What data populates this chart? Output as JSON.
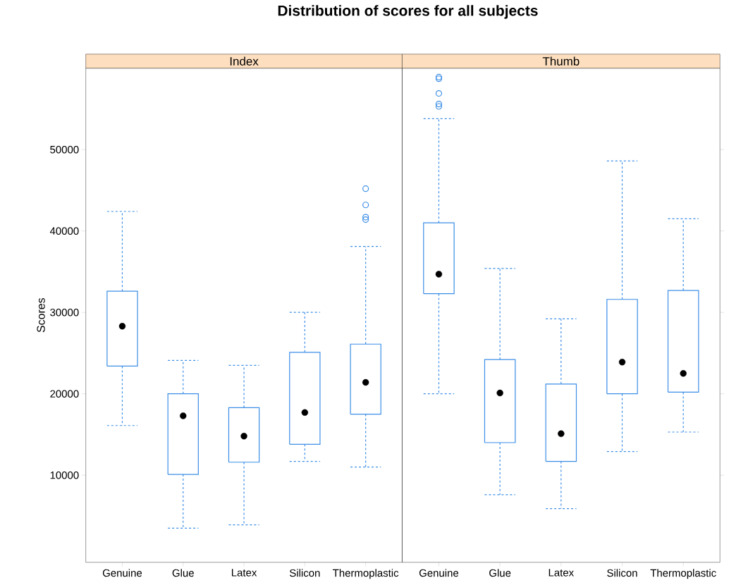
{
  "chart_data": [
    {
      "type": "box",
      "title": "Distribution of scores for all subjects",
      "subtitle": "Index",
      "ylabel": "Scores",
      "color": "#3c8ee6",
      "categories": [
        "Genuine",
        "Glue",
        "Latex",
        "Silicon",
        "Thermoplastic"
      ],
      "boxes": [
        {
          "low": 16100,
          "q1": 23400,
          "median": 28300,
          "q3": 32600,
          "high": 42400
        },
        {
          "low": 3500,
          "q1": 10100,
          "median": 17300,
          "q3": 20000,
          "high": 24100
        },
        {
          "low": 3900,
          "q1": 11600,
          "median": 14800,
          "q3": 18300,
          "high": 23500
        },
        {
          "low": 11700,
          "q1": 13800,
          "median": 17700,
          "q3": 25100,
          "high": 30000
        },
        {
          "low": 11000,
          "q1": 17500,
          "median": 21400,
          "q3": 26100,
          "high": 38100,
          "outliers": [
            45200,
            43200,
            41700,
            41400
          ]
        }
      ],
      "ylim": [
        -700,
        60000
      ],
      "yticks": [
        10000,
        20000,
        30000,
        40000,
        50000
      ]
    },
    {
      "type": "box",
      "subtitle": "Thumb",
      "color": "#3c8ee6",
      "categories": [
        "Genuine",
        "Glue",
        "Latex",
        "Silicon",
        "Thermoplastic"
      ],
      "boxes": [
        {
          "low": 20000,
          "q1": 32300,
          "median": 34700,
          "q3": 41000,
          "high": 53800,
          "outliers": [
            58900,
            58700,
            56900,
            55600,
            55300
          ]
        },
        {
          "low": 7600,
          "q1": 14000,
          "median": 20100,
          "q3": 24200,
          "high": 35400
        },
        {
          "low": 5900,
          "q1": 11700,
          "median": 15100,
          "q3": 21200,
          "high": 29200
        },
        {
          "low": 12900,
          "q1": 20000,
          "median": 23900,
          "q3": 31600,
          "high": 48600
        },
        {
          "low": 15300,
          "q1": 20200,
          "median": 22500,
          "q3": 32700,
          "high": 41500
        }
      ],
      "ylim": [
        -700,
        60000
      ],
      "yticks": [
        10000,
        20000,
        30000,
        40000,
        50000
      ],
      "tick_labels": "x"
    }
  ]
}
